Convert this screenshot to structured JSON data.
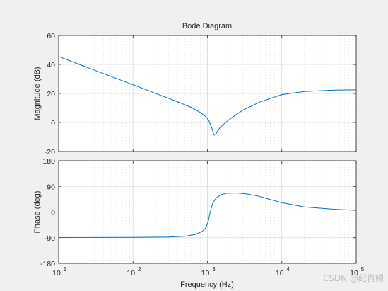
{
  "chart_data": {
    "type": "line",
    "title": "Bode Diagram",
    "xlabel": "Frequency  (Hz)",
    "xscale": "log",
    "xlim": [
      10,
      100000
    ],
    "x_ticks": [
      10,
      100,
      1000,
      10000,
      100000
    ],
    "x_tick_labels": [
      {
        "base": "10",
        "exp": "1"
      },
      {
        "base": "10",
        "exp": "2"
      },
      {
        "base": "10",
        "exp": "3"
      },
      {
        "base": "10",
        "exp": "4"
      },
      {
        "base": "10",
        "exp": "5"
      }
    ],
    "grid": true,
    "line_color": "#0072bd",
    "panels": [
      {
        "name": "magnitude",
        "ylabel": "Magnitude (dB)",
        "ylim": [
          -20,
          60
        ],
        "y_ticks": [
          -20,
          0,
          20,
          40,
          60
        ],
        "x": [
          10,
          20,
          50,
          100,
          200,
          400,
          600,
          800,
          950,
          1050,
          1150,
          1200,
          1250,
          1300,
          1400,
          1550,
          1800,
          2200,
          3000,
          5000,
          10000,
          20000,
          50000,
          100000
        ],
        "y": [
          45.5,
          39.5,
          31.8,
          26,
          20.1,
          14.2,
          10.5,
          7,
          4,
          1,
          -4,
          -7.5,
          -8.8,
          -8,
          -5,
          -2.5,
          0.5,
          3.8,
          8.5,
          14,
          19.2,
          21.3,
          22.3,
          22.5
        ]
      },
      {
        "name": "phase",
        "ylabel": "Phase (deg)",
        "ylim": [
          -180,
          180
        ],
        "y_ticks": [
          -180,
          -90,
          0,
          90,
          180
        ],
        "x": [
          10,
          100,
          300,
          500,
          700,
          850,
          950,
          1020,
          1080,
          1140,
          1200,
          1300,
          1500,
          1800,
          2500,
          3500,
          5000,
          7000,
          10000,
          20000,
          50000,
          100000
        ],
        "y": [
          -89.5,
          -89,
          -87.5,
          -85,
          -78,
          -68,
          -55,
          -35,
          -5,
          20,
          35,
          48,
          60,
          66,
          67,
          63,
          55,
          44,
          33,
          18,
          10,
          6
        ]
      }
    ]
  },
  "watermark": "CSDN @纪肖姆"
}
